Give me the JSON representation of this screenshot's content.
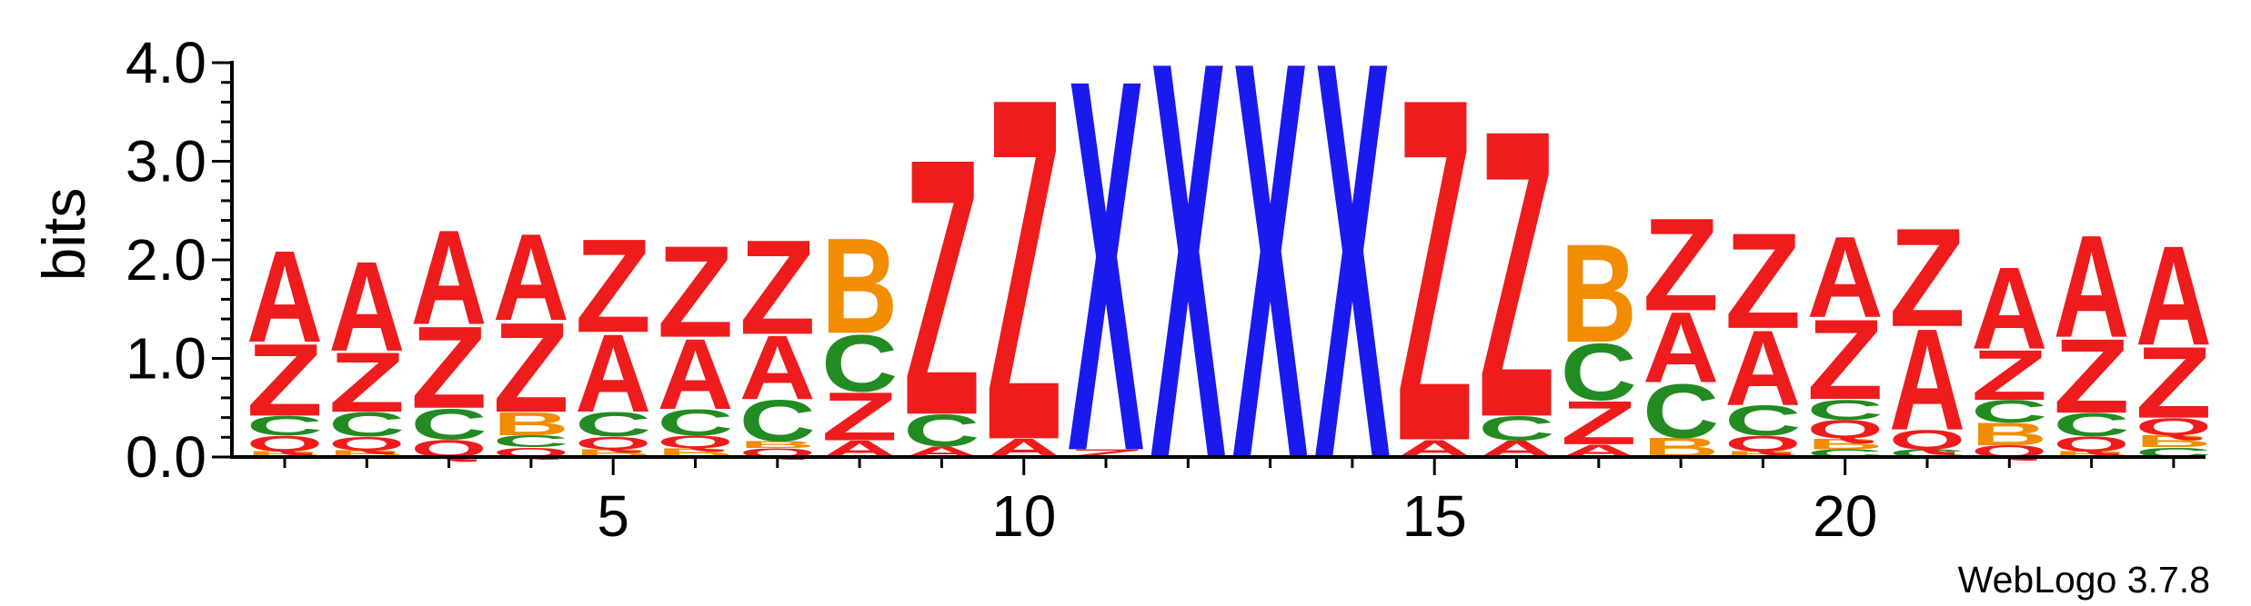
{
  "chart_data": {
    "type": "sequence-logo",
    "ylabel": "bits",
    "ylim": [
      0,
      4.0
    ],
    "y_ticks": [
      "0.0",
      "1.0",
      "2.0",
      "3.0",
      "4.0"
    ],
    "x_ticks": [
      5,
      10,
      15,
      20
    ],
    "x_tick_labels": [
      "5",
      "10",
      "15",
      "20"
    ],
    "positions": [
      1,
      2,
      3,
      4,
      5,
      6,
      7,
      8,
      9,
      10,
      11,
      12,
      13,
      14,
      15,
      16,
      17,
      18,
      19,
      20,
      21,
      22,
      23,
      24
    ],
    "colors": {
      "A": "#ee1c1c",
      "Z": "#ee1c1c",
      "Q": "#ee1c1c",
      "C": "#228b22",
      "B": "#f28c00",
      "X": "#1a1aee"
    },
    "columns": [
      [
        {
          "l": "B",
          "h": 0.06
        },
        {
          "l": "Q",
          "h": 0.16
        },
        {
          "l": "C",
          "h": 0.2
        },
        {
          "l": "Z",
          "h": 0.75
        },
        {
          "l": "A",
          "h": 0.95
        }
      ],
      [
        {
          "l": "B",
          "h": 0.07
        },
        {
          "l": "Q",
          "h": 0.14
        },
        {
          "l": "C",
          "h": 0.25
        },
        {
          "l": "Z",
          "h": 0.62
        },
        {
          "l": "A",
          "h": 0.93
        }
      ],
      [
        {
          "l": "Q",
          "h": 0.18
        },
        {
          "l": "C",
          "h": 0.32
        },
        {
          "l": "Z",
          "h": 0.85
        },
        {
          "l": "A",
          "h": 0.98
        }
      ],
      [
        {
          "l": "Q",
          "h": 0.1
        },
        {
          "l": "C",
          "h": 0.12
        },
        {
          "l": "B",
          "h": 0.24
        },
        {
          "l": "Z",
          "h": 0.93
        },
        {
          "l": "A",
          "h": 0.9
        }
      ],
      [
        {
          "l": "B",
          "h": 0.08
        },
        {
          "l": "Q",
          "h": 0.13
        },
        {
          "l": "C",
          "h": 0.25
        },
        {
          "l": "A",
          "h": 0.81
        },
        {
          "l": "Z",
          "h": 0.97
        }
      ],
      [
        {
          "l": "B",
          "h": 0.09
        },
        {
          "l": "Q",
          "h": 0.13
        },
        {
          "l": "C",
          "h": 0.27
        },
        {
          "l": "A",
          "h": 0.73
        },
        {
          "l": "Z",
          "h": 0.95
        }
      ],
      [
        {
          "l": "Q",
          "h": 0.09
        },
        {
          "l": "B",
          "h": 0.07
        },
        {
          "l": "C",
          "h": 0.43
        },
        {
          "l": "A",
          "h": 0.66
        },
        {
          "l": "Z",
          "h": 0.98
        }
      ],
      [
        {
          "l": "A",
          "h": 0.17
        },
        {
          "l": "Z",
          "h": 0.5
        },
        {
          "l": "C",
          "h": 0.59
        },
        {
          "l": "B",
          "h": 0.99
        }
      ],
      [
        {
          "l": "A",
          "h": 0.11
        },
        {
          "l": "C",
          "h": 0.33
        },
        {
          "l": "Z",
          "h": 2.66
        }
      ],
      [
        {
          "l": "A",
          "h": 0.19
        },
        {
          "l": "Z",
          "h": 3.55
        }
      ],
      [
        {
          "l": "Z",
          "h": 0.08
        },
        {
          "l": "X",
          "h": 3.86
        }
      ],
      [
        {
          "l": "X",
          "h": 4.13
        }
      ],
      [
        {
          "l": "X",
          "h": 4.13
        }
      ],
      [
        {
          "l": "X",
          "h": 4.13
        }
      ],
      [
        {
          "l": "A",
          "h": 0.18
        },
        {
          "l": "Z",
          "h": 3.56
        }
      ],
      [
        {
          "l": "A",
          "h": 0.17
        },
        {
          "l": "C",
          "h": 0.25
        },
        {
          "l": "Z",
          "h": 2.98
        }
      ],
      [
        {
          "l": "A",
          "h": 0.13
        },
        {
          "l": "Z",
          "h": 0.45
        },
        {
          "l": "C",
          "h": 0.59
        },
        {
          "l": "B",
          "h": 1.02
        }
      ],
      [
        {
          "l": "B",
          "h": 0.2
        },
        {
          "l": "C",
          "h": 0.56
        },
        {
          "l": "A",
          "h": 0.73
        },
        {
          "l": "Z",
          "h": 0.96
        }
      ],
      [
        {
          "l": "B",
          "h": 0.06
        },
        {
          "l": "Q",
          "h": 0.16
        },
        {
          "l": "C",
          "h": 0.31
        },
        {
          "l": "A",
          "h": 0.78
        },
        {
          "l": "Z",
          "h": 0.99
        }
      ],
      [
        {
          "l": "C",
          "h": 0.08
        },
        {
          "l": "B",
          "h": 0.11
        },
        {
          "l": "Q",
          "h": 0.19
        },
        {
          "l": "C",
          "h": 0.21
        },
        {
          "l": "Z",
          "h": 0.83
        },
        {
          "l": "A",
          "h": 0.84
        }
      ],
      [
        {
          "l": "C",
          "h": 0.08
        },
        {
          "l": "Q",
          "h": 0.2
        },
        {
          "l": "A",
          "h": 1.05
        },
        {
          "l": "Z",
          "h": 1.02
        }
      ],
      [
        {
          "l": "Q",
          "h": 0.12
        },
        {
          "l": "B",
          "h": 0.23
        },
        {
          "l": "C",
          "h": 0.23
        },
        {
          "l": "Z",
          "h": 0.52
        },
        {
          "l": "A",
          "h": 0.85
        }
      ],
      [
        {
          "l": "B",
          "h": 0.06
        },
        {
          "l": "Q",
          "h": 0.15
        },
        {
          "l": "C",
          "h": 0.24
        },
        {
          "l": "Z",
          "h": 0.77
        },
        {
          "l": "A",
          "h": 1.06
        }
      ],
      [
        {
          "l": "C",
          "h": 0.1
        },
        {
          "l": "B",
          "h": 0.12
        },
        {
          "l": "Q",
          "h": 0.18
        },
        {
          "l": "Z",
          "h": 0.74
        },
        {
          "l": "A",
          "h": 1.03
        }
      ]
    ]
  },
  "footer": {
    "version_label": "WebLogo 3.7.8"
  }
}
